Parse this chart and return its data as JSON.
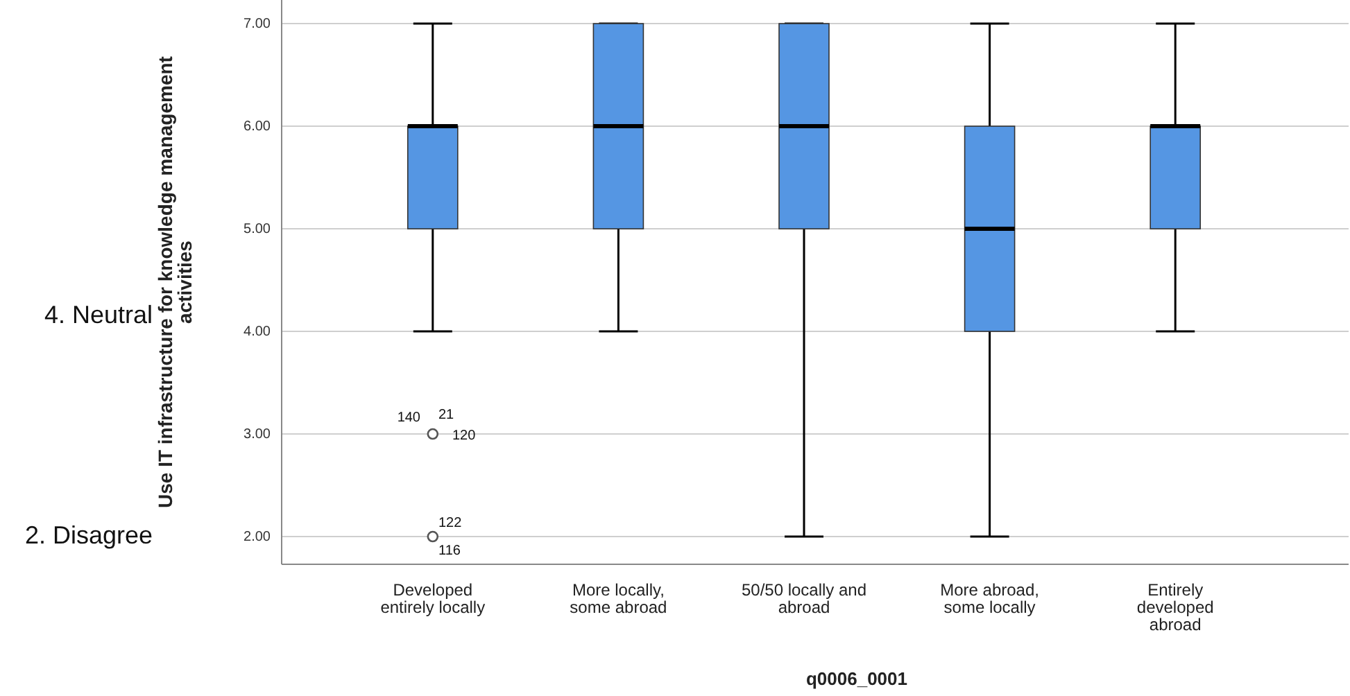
{
  "chart_data": {
    "type": "box",
    "xlabel": "q0006_0001",
    "ylabel": "Use IT infrastructure for knowledge management activities",
    "categories": [
      "Developed entirely locally",
      "More locally, some abroad",
      "50/50 locally and abroad",
      "More abroad, some locally",
      "Entirely developed abroad"
    ],
    "color": "#5596e3",
    "boxes": [
      {
        "low": 4,
        "q1": 5,
        "median": 6,
        "q3": 6,
        "high": 7,
        "outliers": [
          3,
          2
        ]
      },
      {
        "low": 4,
        "q1": 5,
        "median": 6,
        "q3": 7,
        "high": 7
      },
      {
        "low": 2,
        "q1": 5,
        "median": 6,
        "q3": 7,
        "high": 7
      },
      {
        "low": 2,
        "q1": 4,
        "median": 5,
        "q3": 6,
        "high": 7
      },
      {
        "low": 4,
        "q1": 5,
        "median": 6,
        "q3": 6,
        "high": 7
      }
    ],
    "ylim": [
      1.73,
      7.23
    ],
    "yticks": [
      {
        "value": 2,
        "label": "2.00"
      },
      {
        "value": 3,
        "label": "3.00"
      },
      {
        "value": 4,
        "label": "4.00"
      },
      {
        "value": 5,
        "label": "5.00"
      },
      {
        "value": 6,
        "label": "6.00"
      },
      {
        "value": 7,
        "label": "7.00"
      }
    ],
    "grid": "y",
    "annotations": [
      "4. Neutral",
      "2. Disagree",
      "140",
      "21",
      "120",
      "122",
      "116"
    ]
  }
}
